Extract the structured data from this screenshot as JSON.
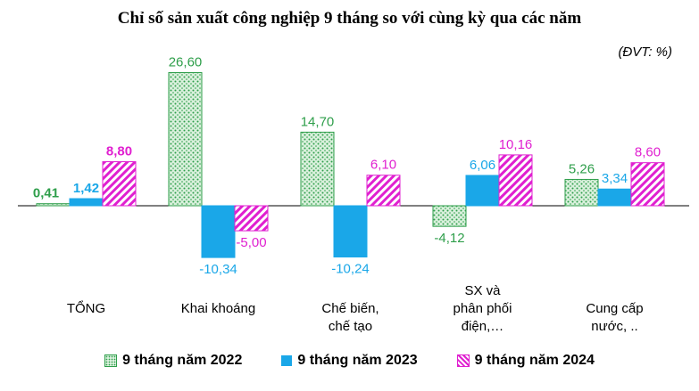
{
  "chart_data": {
    "type": "bar",
    "title": "Chỉ số sản xuất công nghiệp 9 tháng so với cùng kỳ qua các năm",
    "unit_note": "(ĐVT: %)",
    "categories": [
      [
        "TỔNG"
      ],
      [
        "Khai  khoáng"
      ],
      [
        "Chế biến,",
        "chế tạo"
      ],
      [
        "SX và",
        "phân phối",
        "điện,…"
      ],
      [
        "Cung cấp",
        "nước, .."
      ]
    ],
    "series": [
      {
        "name": "9 tháng năm 2022",
        "values": [
          0.41,
          26.6,
          14.7,
          -4.12,
          5.26
        ],
        "labels": [
          "0,41",
          "26,60",
          "14,70",
          "-4,12",
          "5,26"
        ],
        "color": "#2e9e4a",
        "pattern": "dots-green"
      },
      {
        "name": "9 tháng năm 2023",
        "values": [
          1.42,
          -10.34,
          -10.24,
          6.06,
          3.34
        ],
        "labels": [
          "1,42",
          "-10,34",
          "-10,24",
          "6,06",
          "3,34"
        ],
        "color": "#1aa7e8",
        "pattern": "solid-blue"
      },
      {
        "name": "9 tháng năm 2024",
        "values": [
          8.8,
          -5.0,
          6.1,
          10.16,
          8.6
        ],
        "labels": [
          "8,80",
          "-5,00",
          "6,10",
          "10,16",
          "8,60"
        ],
        "color": "#e020d0",
        "pattern": "stripes-magenta"
      }
    ],
    "ylim": [
      -16,
      28
    ],
    "grid": false,
    "legend_position": "bottom"
  }
}
